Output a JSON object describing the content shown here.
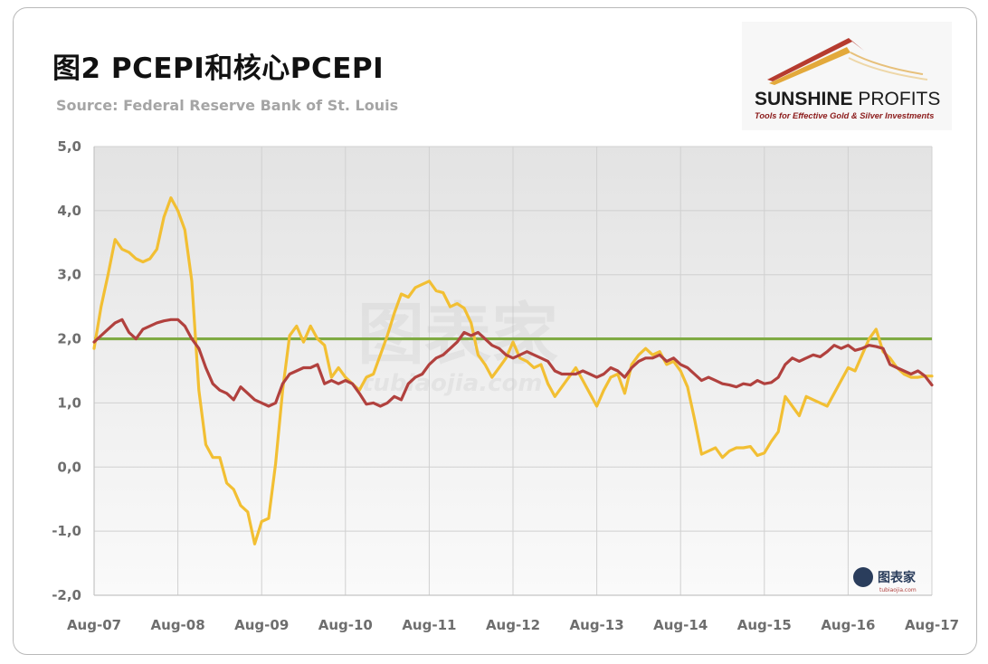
{
  "header": {
    "title": "图2  PCEPI和核心PCEPI",
    "source": "Source: Federal Reserve Bank of St. Louis"
  },
  "logo": {
    "name_bold": "SUNSHINE",
    "name_thin": " PROFITS",
    "tagline": "Tools for Effective Gold & Silver Investments"
  },
  "watermark": {
    "big": "图表家",
    "url": "tubiaojia.com"
  },
  "colors": {
    "pcepi": "#f2bf33",
    "core": "#b1413e",
    "target": "#7fab43",
    "grid": "#d0d0d0"
  },
  "chart_data": {
    "type": "line",
    "x_ticks": [
      "Aug-07",
      "Aug-08",
      "Aug-09",
      "Aug-10",
      "Aug-11",
      "Aug-12",
      "Aug-13",
      "Aug-14",
      "Aug-15",
      "Aug-16",
      "Aug-17"
    ],
    "y_ticks": [
      "5,0",
      "4,0",
      "3,0",
      "2,0",
      "1,0",
      "0,0",
      "-1,0",
      "-2,0"
    ],
    "ylim": [
      -2.0,
      5.0
    ],
    "xlim_months": [
      0,
      120
    ],
    "target_line": 2.0,
    "grid": true,
    "series": [
      {
        "key": "pcepi",
        "values": [
          1.85,
          2.5,
          3.0,
          3.55,
          3.4,
          3.35,
          3.25,
          3.2,
          3.25,
          3.4,
          3.9,
          4.2,
          4.0,
          3.7,
          2.9,
          1.2,
          0.35,
          0.15,
          0.15,
          -0.25,
          -0.35,
          -0.6,
          -0.7,
          -1.2,
          -0.85,
          -0.8,
          0.05,
          1.2,
          2.05,
          2.2,
          1.95,
          2.2,
          2.0,
          1.9,
          1.4,
          1.55,
          1.4,
          1.3,
          1.2,
          1.4,
          1.45,
          1.75,
          2.05,
          2.4,
          2.7,
          2.65,
          2.8,
          2.85,
          2.9,
          2.75,
          2.72,
          2.5,
          2.55,
          2.48,
          2.25,
          1.75,
          1.6,
          1.4,
          1.55,
          1.7,
          1.95,
          1.7,
          1.65,
          1.55,
          1.6,
          1.3,
          1.1,
          1.25,
          1.4,
          1.55,
          1.35,
          1.15,
          0.95,
          1.2,
          1.4,
          1.45,
          1.15,
          1.6,
          1.75,
          1.85,
          1.75,
          1.8,
          1.6,
          1.65,
          1.5,
          1.25,
          0.75,
          0.2,
          0.25,
          0.3,
          0.15,
          0.25,
          0.3,
          0.3,
          0.32,
          0.18,
          0.22,
          0.4,
          0.55,
          1.1,
          0.95,
          0.8,
          1.1,
          1.05,
          1.0,
          0.95,
          1.15,
          1.35,
          1.55,
          1.5,
          1.75,
          2.0,
          2.15,
          1.8,
          1.7,
          1.55,
          1.45,
          1.4,
          1.4,
          1.42,
          1.42
        ]
      },
      {
        "key": "core",
        "values": [
          1.95,
          2.05,
          2.15,
          2.25,
          2.3,
          2.1,
          2.0,
          2.15,
          2.2,
          2.25,
          2.28,
          2.3,
          2.3,
          2.2,
          2.0,
          1.85,
          1.55,
          1.3,
          1.2,
          1.15,
          1.05,
          1.25,
          1.15,
          1.05,
          1.0,
          0.95,
          1.0,
          1.3,
          1.45,
          1.5,
          1.55,
          1.55,
          1.6,
          1.3,
          1.35,
          1.3,
          1.35,
          1.3,
          1.15,
          0.98,
          1.0,
          0.95,
          1.0,
          1.1,
          1.05,
          1.3,
          1.4,
          1.45,
          1.6,
          1.7,
          1.75,
          1.85,
          1.95,
          2.1,
          2.05,
          2.1,
          2.0,
          1.9,
          1.85,
          1.75,
          1.7,
          1.75,
          1.8,
          1.75,
          1.7,
          1.65,
          1.5,
          1.45,
          1.45,
          1.45,
          1.5,
          1.45,
          1.4,
          1.45,
          1.55,
          1.5,
          1.4,
          1.55,
          1.65,
          1.7,
          1.7,
          1.75,
          1.65,
          1.7,
          1.6,
          1.55,
          1.45,
          1.35,
          1.4,
          1.35,
          1.3,
          1.28,
          1.25,
          1.3,
          1.28,
          1.35,
          1.3,
          1.32,
          1.4,
          1.6,
          1.7,
          1.65,
          1.7,
          1.75,
          1.72,
          1.8,
          1.9,
          1.85,
          1.9,
          1.82,
          1.85,
          1.9,
          1.88,
          1.85,
          1.6,
          1.55,
          1.5,
          1.45,
          1.5,
          1.42,
          1.28
        ]
      }
    ]
  }
}
